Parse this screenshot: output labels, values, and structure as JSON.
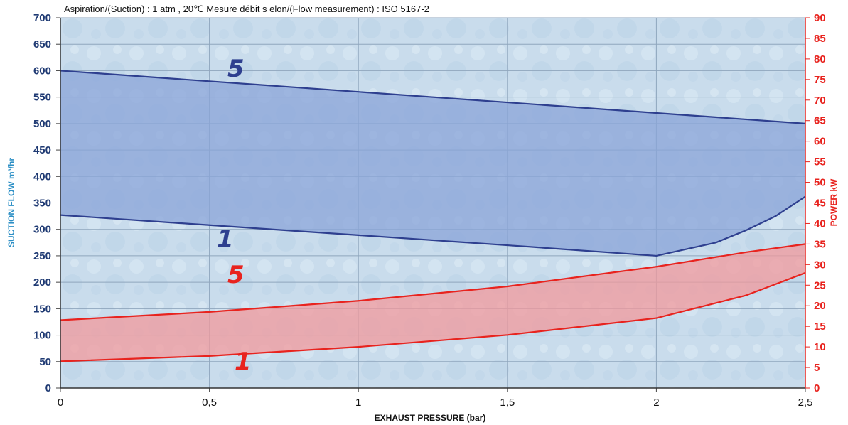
{
  "chart_data": {
    "type": "area",
    "subtitle": "Aspiration/(Suction) : 1 atm , 20℃  Mesure débit s elon/(Flow measurement) : ISO 5167-2",
    "xlabel": "EXHAUST PRESSURE (bar)",
    "ylabel": "SUCTION FLOW m³/hr",
    "y2label": "POWER kW",
    "xlim": [
      0,
      2.5
    ],
    "ylim": [
      0,
      700
    ],
    "y2lim": [
      0,
      90
    ],
    "x_ticks": [
      "0",
      "0,5",
      "1",
      "1,5",
      "2",
      "2,5"
    ],
    "x_tick_values": [
      0,
      0.5,
      1,
      1.5,
      2,
      2.5
    ],
    "y_ticks": [
      "0",
      "50",
      "100",
      "150",
      "200",
      "250",
      "300",
      "350",
      "400",
      "450",
      "500",
      "550",
      "600",
      "650",
      "700"
    ],
    "y2_ticks": [
      "0",
      "5",
      "10",
      "15",
      "20",
      "25",
      "30",
      "35",
      "40",
      "45",
      "50",
      "55",
      "60",
      "65",
      "70",
      "75",
      "80",
      "85",
      "90"
    ],
    "grid": true,
    "series": [
      {
        "axis": "left",
        "color": "#2e3f8f",
        "fill": "#8aa4d8",
        "upper_label": "5",
        "lower_label": "1",
        "upper": [
          [
            0,
            600
          ],
          [
            0.5,
            580
          ],
          [
            1,
            560
          ],
          [
            1.5,
            540
          ],
          [
            2,
            520
          ],
          [
            2.5,
            500
          ]
        ],
        "lower": [
          [
            0,
            327
          ],
          [
            0.5,
            308
          ],
          [
            1,
            289
          ],
          [
            1.5,
            270
          ],
          [
            2,
            250
          ],
          [
            2.2,
            275
          ],
          [
            2.3,
            298
          ],
          [
            2.4,
            325
          ],
          [
            2.5,
            362
          ]
        ]
      },
      {
        "axis": "right",
        "color": "#e8231e",
        "fill": "#f29a9c",
        "upper_label": "5",
        "lower_label": "1",
        "upper": [
          [
            0,
            16.5
          ],
          [
            0.5,
            18.5
          ],
          [
            1,
            21.2
          ],
          [
            1.5,
            24.7
          ],
          [
            2,
            29.5
          ],
          [
            2.3,
            33
          ],
          [
            2.5,
            35
          ]
        ],
        "lower": [
          [
            0,
            6.5
          ],
          [
            0.5,
            7.8
          ],
          [
            1,
            10
          ],
          [
            1.5,
            12.9
          ],
          [
            2,
            17
          ],
          [
            2.3,
            22.5
          ],
          [
            2.5,
            28
          ]
        ]
      }
    ]
  }
}
